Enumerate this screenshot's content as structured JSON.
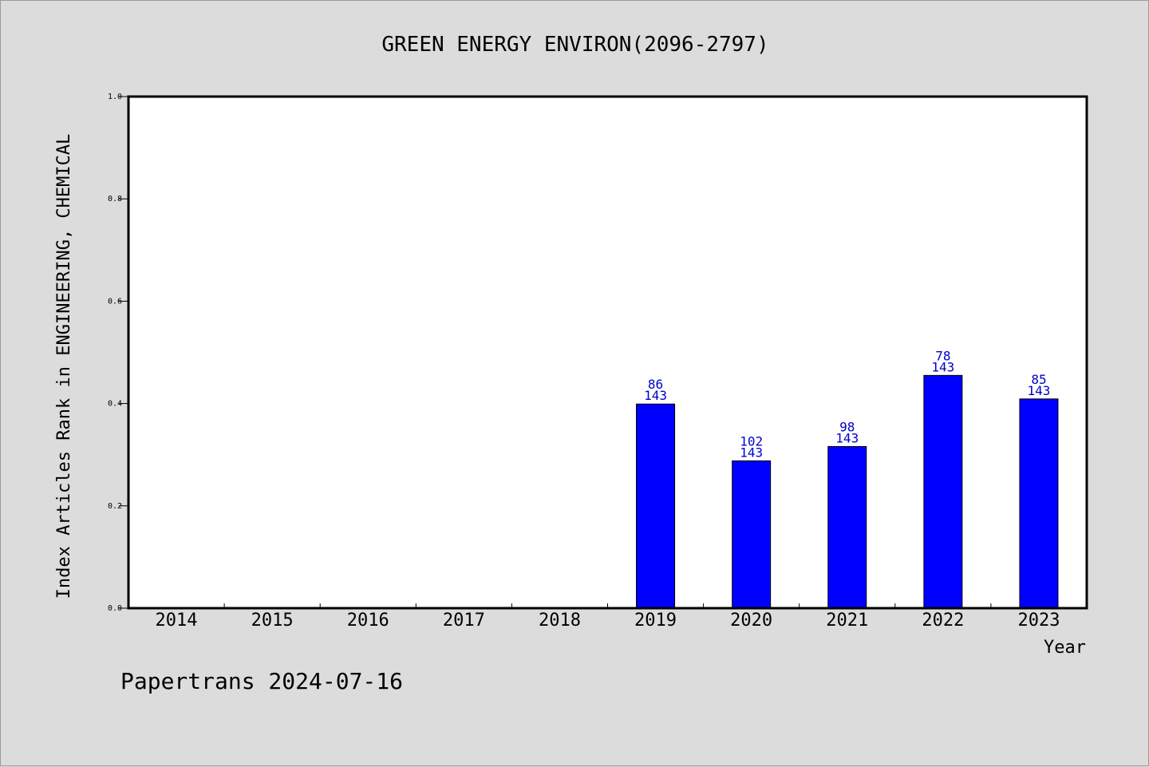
{
  "chart_data": {
    "type": "bar",
    "title": "GREEN ENERGY ENVIRON(2096-2797)",
    "xlabel": "Year",
    "ylabel": "Index Articles Rank in ENGINEERING, CHEMICAL",
    "ylim": [
      0,
      1.0
    ],
    "yticks": [
      "0.0",
      "0.2",
      "0.4",
      "0.6",
      "0.8",
      "1.0"
    ],
    "categories": [
      "2014",
      "2015",
      "2016",
      "2017",
      "2018",
      "2019",
      "2020",
      "2021",
      "2022",
      "2023"
    ],
    "values": [
      null,
      null,
      null,
      null,
      null,
      0.399,
      0.288,
      0.316,
      0.455,
      0.409
    ],
    "bar_labels": [
      null,
      null,
      null,
      null,
      null,
      {
        "rank": "86",
        "total": "143"
      },
      {
        "rank": "102",
        "total": "143"
      },
      {
        "rank": "98",
        "total": "143"
      },
      {
        "rank": "78",
        "total": "143"
      },
      {
        "rank": "85",
        "total": "143"
      }
    ],
    "grid": false,
    "colors": {
      "bar": "#0000ff",
      "label": "#0000cc",
      "background": "#dcdcdc",
      "plot": "#ffffff"
    }
  },
  "footer": "Papertrans 2024-07-16"
}
